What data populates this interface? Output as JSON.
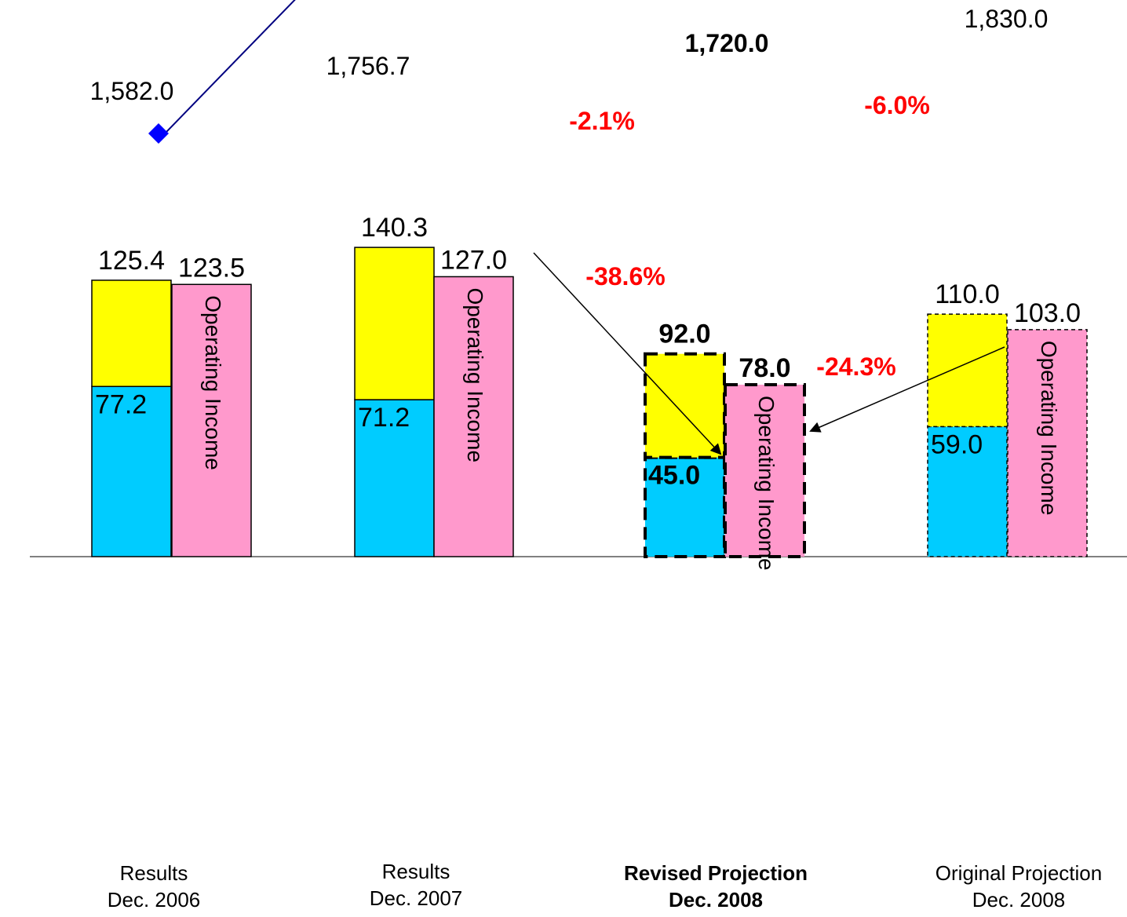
{
  "chart_data": {
    "type": "bar",
    "categories": [
      {
        "line1": "Results",
        "line2": "Dec. 2006",
        "bold": false,
        "style": "solid"
      },
      {
        "line1": "Results",
        "line2": "Dec. 2007",
        "bold": false,
        "style": "solid"
      },
      {
        "line1": "Revised Projection",
        "line2": "Dec. 2008",
        "bold": true,
        "style": "dashed-heavy"
      },
      {
        "line1": "Original Projection",
        "line2": "Dec. 2008",
        "bold": false,
        "style": "dashed-light"
      }
    ],
    "stacked_bar": {
      "totals": [
        125.4,
        140.3,
        92.0,
        110.0
      ],
      "total_labels": [
        "125.4",
        "140.3",
        "92.0",
        "110.0"
      ],
      "bottom_values": [
        77.2,
        71.2,
        45.0,
        59.0
      ],
      "bottom_labels": [
        "77.2",
        "71.2",
        "45.0",
        "59.0"
      ],
      "bottom_color": "#00CCFF",
      "top_color": "#FFFF00"
    },
    "operating_income": {
      "values": [
        123.5,
        127.0,
        78.0,
        103.0
      ],
      "labels": [
        "123.5",
        "127.0",
        "78.0",
        "103.0"
      ],
      "bar_text": "Operating Income",
      "color": "#FF99CC"
    },
    "line_series": {
      "values": [
        1582.0,
        1756.7,
        1720.0,
        1830.0
      ],
      "labels": [
        "1,582.0",
        "1,756.7",
        "1,720.0",
        "1,830.0"
      ],
      "marker_color": "#0000FF",
      "line_color": "#000080"
    },
    "annotations": {
      "line_change_from_2007": "-2.1%",
      "line_change_from_original": "-6.0%",
      "bar_change_from_2007": "-38.6%",
      "bar_change_from_original": "-24.3%",
      "color": "#FF0000"
    },
    "grid": false,
    "legend": "none"
  }
}
